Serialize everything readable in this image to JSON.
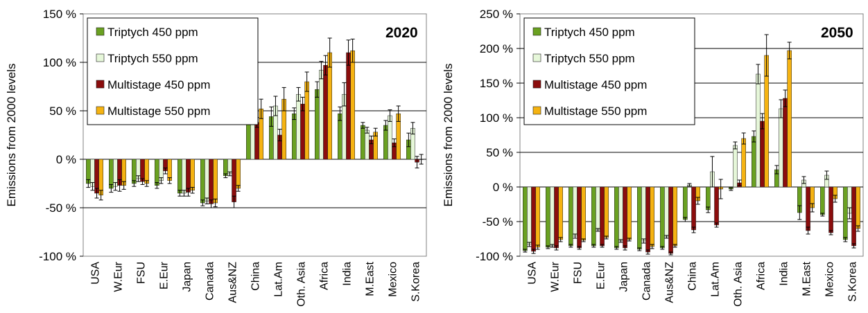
{
  "chart_data": [
    {
      "type": "bar",
      "title": "2020",
      "ylabel": "Emissions from 2000 levels",
      "ylim": [
        -100,
        150
      ],
      "yticks": [
        -100,
        -50,
        0,
        50,
        100,
        150
      ],
      "ytick_labels": [
        "-100 %",
        "-50 %",
        "0 %",
        "50 %",
        "100 %",
        "150 %"
      ],
      "grid": "horizontal",
      "legend_position": "top-left",
      "categories": [
        "USA",
        "W.Eur",
        "FSU",
        "E.Eur",
        "Japan",
        "Canada",
        "Aus&NZ",
        "China",
        "Lat.Am",
        "Oth. Asia",
        "Africa",
        "India",
        "M.East",
        "Mexico",
        "S.Korea"
      ],
      "series": [
        {
          "name": "Triptych 450 ppm",
          "color": "#6aa121",
          "values": [
            -25,
            -30,
            -25,
            -27,
            -35,
            -45,
            -17,
            50,
            44,
            47,
            72,
            47,
            35,
            35,
            20
          ],
          "errors": [
            4,
            4,
            3,
            3,
            3,
            3,
            2,
            9,
            10,
            6,
            8,
            7,
            3,
            5,
            7
          ]
        },
        {
          "name": "Triptych 550 ppm",
          "color": "#e6f7d9",
          "values": [
            -28,
            -28,
            -20,
            -22,
            -35,
            -43,
            -15,
            60,
            55,
            67,
            92,
            67,
            30,
            45,
            32
          ],
          "errors": [
            4,
            4,
            3,
            3,
            3,
            3,
            2,
            9,
            10,
            7,
            9,
            12,
            3,
            6,
            6
          ]
        },
        {
          "name": "Multistage 450 ppm",
          "color": "#8b0d0d",
          "values": [
            -35,
            -27,
            -23,
            -12,
            -34,
            -46,
            -44,
            38,
            25,
            57,
            97,
            110,
            20,
            17,
            -3
          ],
          "errors": [
            5,
            6,
            3,
            3,
            4,
            4,
            6,
            5,
            6,
            7,
            10,
            13,
            4,
            4,
            6
          ]
        },
        {
          "name": "Multistage 550 ppm",
          "color": "#f5b312",
          "values": [
            -37,
            -27,
            -25,
            -22,
            -32,
            -45,
            -30,
            52,
            62,
            80,
            110,
            112,
            28,
            47,
            0
          ],
          "errors": [
            5,
            4,
            3,
            3,
            3,
            4,
            3,
            10,
            12,
            10,
            15,
            12,
            4,
            8,
            5
          ]
        }
      ]
    },
    {
      "type": "bar",
      "title": "2050",
      "ylabel": "Emissions from 2000 levels",
      "ylim": [
        -100,
        250
      ],
      "yticks": [
        -100,
        -50,
        0,
        50,
        100,
        150,
        200,
        250
      ],
      "ytick_labels": [
        "-100 %",
        "-50 %",
        "0 %",
        "50 %",
        "100 %",
        "150 %",
        "200 %",
        "250 %"
      ],
      "grid": "horizontal",
      "legend_position": "top-left",
      "categories": [
        "USA",
        "W.Eur",
        "FSU",
        "E.Eur",
        "Japan",
        "Canada",
        "Aus&NZ",
        "China",
        "Lat.Am",
        "Oth. Asia",
        "Africa",
        "India",
        "M.East",
        "Mexico",
        "S.Korea"
      ],
      "series": [
        {
          "name": "Triptych 450 ppm",
          "color": "#6aa121",
          "values": [
            -92,
            -87,
            -85,
            -85,
            -88,
            -90,
            -88,
            -47,
            -33,
            -3,
            73,
            25,
            -37,
            -40,
            -76
          ],
          "errors": [
            2,
            2,
            2,
            2,
            2,
            2,
            2,
            3,
            4,
            2,
            8,
            6,
            10,
            2,
            3
          ]
        },
        {
          "name": "Triptych 550 ppm",
          "color": "#e6f7d9",
          "values": [
            -83,
            -85,
            -71,
            -62,
            -78,
            -78,
            -72,
            3,
            22,
            60,
            163,
            113,
            10,
            17,
            -38
          ],
          "errors": [
            3,
            2,
            3,
            2,
            2,
            3,
            2,
            2,
            22,
            5,
            14,
            13,
            5,
            6,
            8
          ]
        },
        {
          "name": "Multistage 450 ppm",
          "color": "#8b0d0d",
          "values": [
            -93,
            -88,
            -88,
            -85,
            -88,
            -94,
            -96,
            -62,
            -55,
            6,
            95,
            128,
            -63,
            -66,
            -85
          ],
          "errors": [
            3,
            3,
            2,
            2,
            3,
            3,
            2,
            4,
            3,
            4,
            11,
            12,
            5,
            3,
            3
          ]
        },
        {
          "name": "Multistage 550 ppm",
          "color": "#f5b312",
          "values": [
            -87,
            -76,
            -77,
            -73,
            -76,
            -86,
            -85,
            -20,
            -3,
            70,
            190,
            197,
            -30,
            -17,
            -60
          ],
          "errors": [
            3,
            3,
            2,
            2,
            2,
            3,
            2,
            5,
            14,
            8,
            30,
            12,
            6,
            5,
            4
          ]
        }
      ]
    }
  ]
}
